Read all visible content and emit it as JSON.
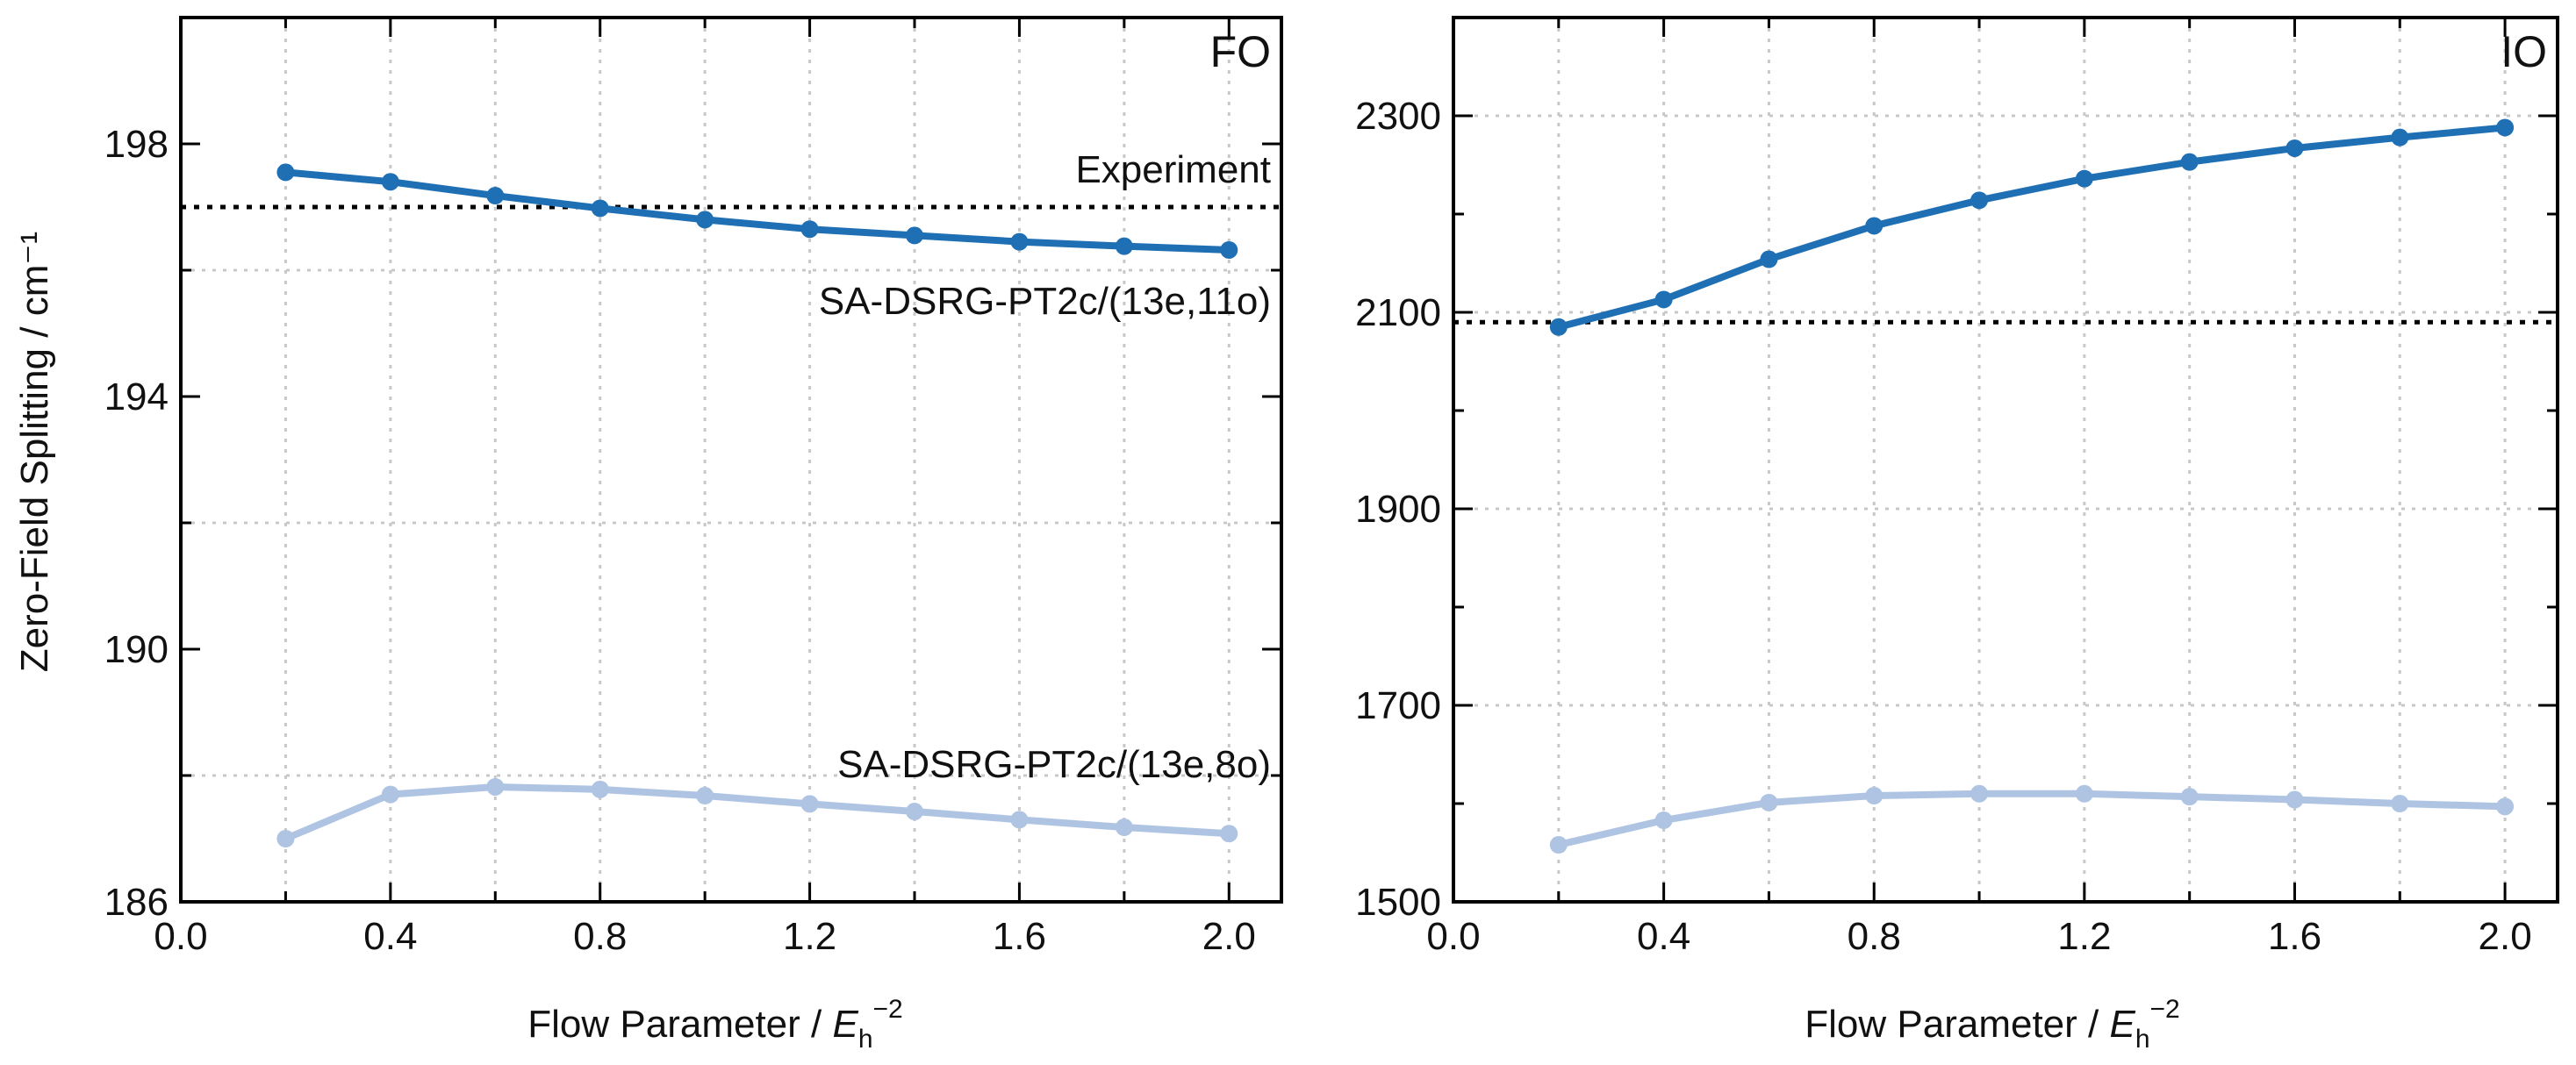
{
  "figure": {
    "shared_ylabel": "Zero-Field Splitting / cm⁻¹",
    "shared_xlabel": {
      "prefix": "Flow Parameter / ",
      "symbol": "E",
      "subscript": "h",
      "superscript": "−2"
    }
  },
  "chart_data": [
    {
      "type": "line",
      "panel": "FO",
      "xlim": [
        0.0,
        2.1
      ],
      "ylim": [
        186,
        200
      ],
      "xticks": [
        0.0,
        0.4,
        0.8,
        1.2,
        1.6,
        2.0
      ],
      "xtick_labels": [
        "0.0",
        "0.4",
        "0.8",
        "1.2",
        "1.6",
        "2.0"
      ],
      "yticks": [
        186,
        190,
        194,
        198
      ],
      "ytick_labels": [
        "186",
        "190",
        "194",
        "198"
      ],
      "xminor": [
        0.2,
        0.6,
        1.0,
        1.4,
        1.8
      ],
      "yminor": [
        188,
        192,
        196
      ],
      "ygrid": [
        188,
        192,
        196
      ],
      "grid": true,
      "x": [
        0.2,
        0.4,
        0.6,
        0.8,
        1.0,
        1.2,
        1.4,
        1.6,
        1.8,
        2.0
      ],
      "series": [
        {
          "name": "SA-DSRG-PT2c/(13e,11o)",
          "color": "#1f6fb4",
          "values": [
            197.55,
            197.4,
            197.18,
            196.98,
            196.8,
            196.65,
            196.55,
            196.45,
            196.38,
            196.32
          ]
        },
        {
          "name": "SA-DSRG-PT2c/(13e,8o)",
          "color": "#aec4e2",
          "values": [
            187.0,
            187.7,
            187.82,
            187.78,
            187.68,
            187.55,
            187.43,
            187.3,
            187.18,
            187.08
          ]
        }
      ],
      "reference": {
        "name": "Experiment",
        "value": 197.0,
        "label": "Experiment"
      },
      "annotations": [
        {
          "text": "SA-DSRG-PT2c/(13e,11o)"
        },
        {
          "text": "SA-DSRG-PT2c/(13e,8o)"
        }
      ]
    },
    {
      "type": "line",
      "panel": "IO",
      "xlim": [
        0.0,
        2.1
      ],
      "ylim": [
        1500,
        2400
      ],
      "xticks": [
        0.0,
        0.4,
        0.8,
        1.2,
        1.6,
        2.0
      ],
      "xtick_labels": [
        "0.0",
        "0.4",
        "0.8",
        "1.2",
        "1.6",
        "2.0"
      ],
      "yticks": [
        1500,
        1700,
        1900,
        2100,
        2300
      ],
      "ytick_labels": [
        "1500",
        "1700",
        "1900",
        "2100",
        "2300"
      ],
      "xminor": [
        0.2,
        0.6,
        1.0,
        1.4,
        1.8
      ],
      "yminor": [
        1600,
        1800,
        2000,
        2200
      ],
      "ygrid": [
        1700,
        1900,
        2100,
        2300
      ],
      "grid": true,
      "x": [
        0.2,
        0.4,
        0.6,
        0.8,
        1.0,
        1.2,
        1.4,
        1.6,
        1.8,
        2.0
      ],
      "series": [
        {
          "name": "SA-DSRG-PT2c/(13e,11o)",
          "color": "#1f6fb4",
          "values": [
            2085,
            2113,
            2154,
            2188,
            2214,
            2236,
            2253,
            2267,
            2278,
            2288
          ]
        },
        {
          "name": "SA-DSRG-PT2c/(13e,8o)",
          "color": "#aec4e2",
          "values": [
            1558,
            1583,
            1601,
            1608,
            1610,
            1610,
            1607,
            1604,
            1600,
            1597
          ]
        }
      ],
      "reference": {
        "name": "Experiment",
        "value": 2090
      },
      "annotations": []
    }
  ]
}
